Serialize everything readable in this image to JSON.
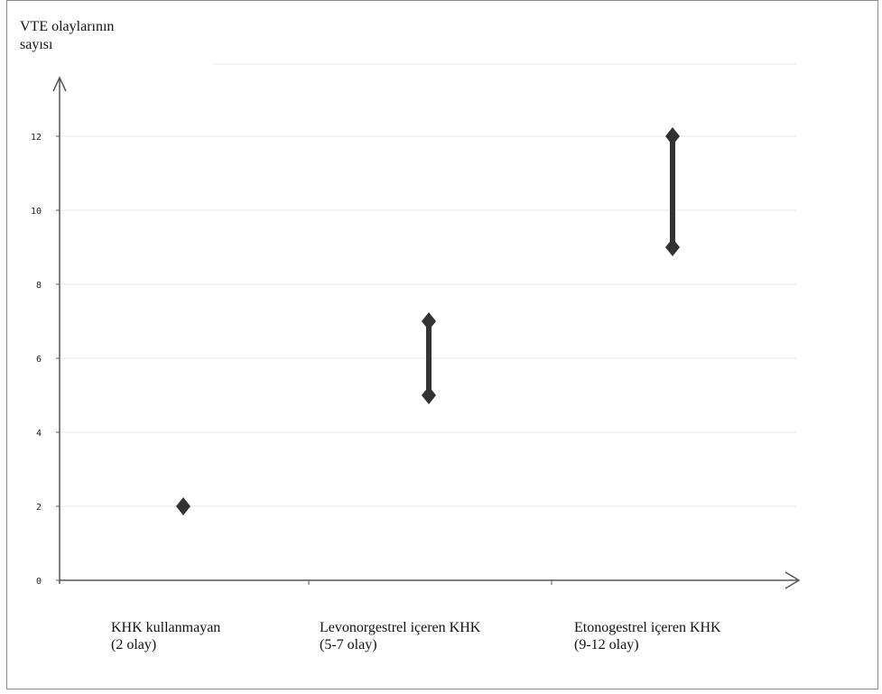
{
  "chart_data": {
    "type": "scatter",
    "title": "",
    "ylabel": "VTE olaylarının\nsayısı",
    "xlabel": "",
    "ylim": [
      0,
      13
    ],
    "yticks": [
      0,
      2,
      4,
      6,
      8,
      10,
      12
    ],
    "grid": true,
    "categories": [
      {
        "line1": "KHK kullanmayan",
        "line2": "(2 olay)",
        "low": 2,
        "high": 2
      },
      {
        "line1": "Levonorgestrel içeren KHK",
        "line2": "(5-7 olay)",
        "low": 5,
        "high": 7
      },
      {
        "line1": "Etonogestrel içeren KHK",
        "line2": "(9-12 olay)",
        "low": 9,
        "high": 12
      }
    ],
    "colors": {
      "marker": "#333333",
      "grid": "#e6e6e6",
      "axis": "#555555"
    }
  }
}
